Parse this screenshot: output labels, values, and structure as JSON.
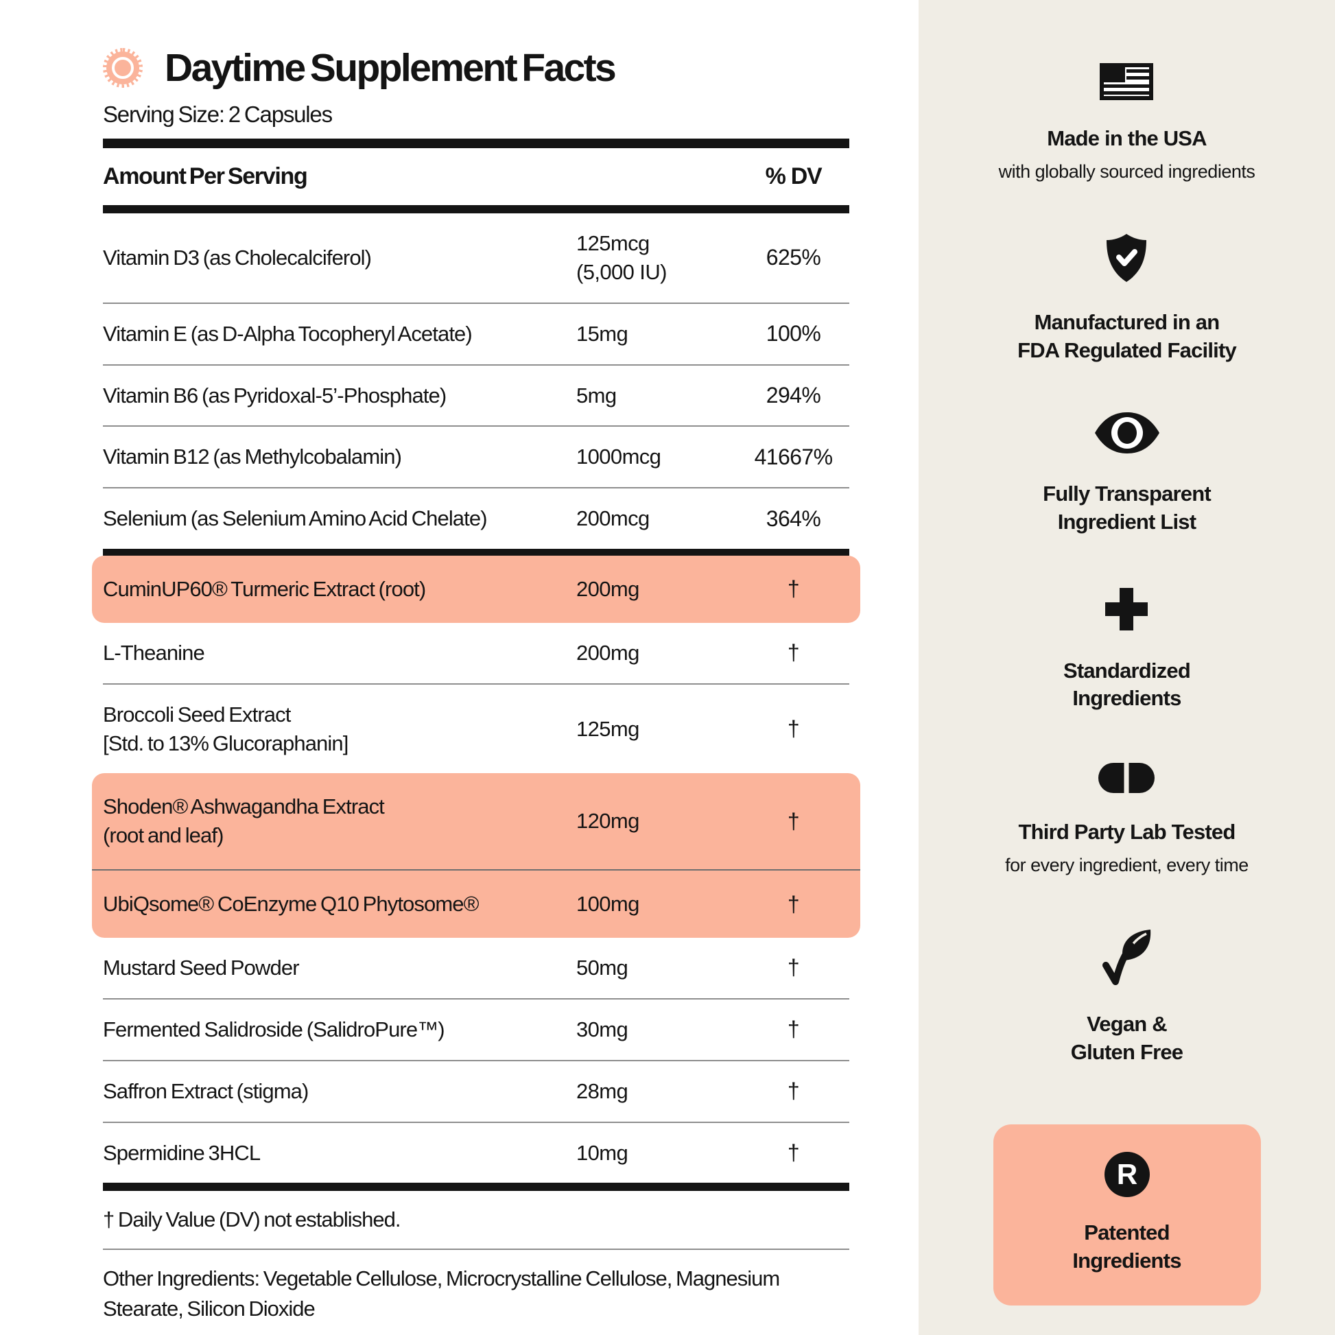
{
  "colors": {
    "accent_peach": "#FBB49B",
    "sidebar_background": "#F0EDE5",
    "ink": "#141414",
    "divider_gray": "#8E8E8E"
  },
  "header": {
    "title": "Daytime Supplement Facts",
    "serving_size": "Serving Size: 2 Capsules"
  },
  "table": {
    "amount_header": "Amount Per Serving",
    "dv_header": "% DV",
    "rows": [
      {
        "name": "Vitamin D3 (as Cholecalciferol)",
        "amount": "125mcg\n(5,000 IU)",
        "dv": "625%",
        "divider": false,
        "highlight": null
      },
      {
        "name": "Vitamin E (as D-Alpha Tocopheryl Acetate)",
        "amount": "15mg",
        "dv": "100%",
        "divider": true,
        "highlight": null
      },
      {
        "name": "Vitamin B6 (as Pyridoxal-5’-Phosphate)",
        "amount": "5mg",
        "dv": "294%",
        "divider": true,
        "highlight": null
      },
      {
        "name": "Vitamin B12 (as Methylcobalamin)",
        "amount": "1000mcg",
        "dv": "41667%",
        "divider": true,
        "highlight": null
      },
      {
        "name": "Selenium (as Selenium Amino Acid Chelate)",
        "amount": "200mcg",
        "dv": "364%",
        "divider": true,
        "highlight": null
      },
      {
        "name": "CuminUP60® Turmeric Extract (root)",
        "amount": "200mg",
        "dv": "†",
        "divider": false,
        "highlight": "all",
        "thick_rule_above": true
      },
      {
        "name": "L-Theanine",
        "amount": "200mg",
        "dv": "†",
        "divider": false,
        "highlight": null
      },
      {
        "name": "Broccoli Seed Extract\n[Std. to 13% Glucoraphanin]",
        "amount": "125mg",
        "dv": "†",
        "divider": true,
        "highlight": null
      },
      {
        "name": "Shoden® Ashwagandha Extract\n(root and leaf)",
        "amount": "120mg",
        "dv": "†",
        "divider": false,
        "highlight": "top"
      },
      {
        "name": "UbiQsome® CoEnzyme Q10 Phytosome®",
        "amount": "100mg",
        "dv": "†",
        "divider": true,
        "highlight": "bottom"
      },
      {
        "name": "Mustard Seed Powder",
        "amount": "50mg",
        "dv": "†",
        "divider": false,
        "highlight": null
      },
      {
        "name": "Fermented Salidroside (SalidroPure™)",
        "amount": "30mg",
        "dv": "†",
        "divider": true,
        "highlight": null
      },
      {
        "name": "Saffron Extract (stigma)",
        "amount": "28mg",
        "dv": "†",
        "divider": true,
        "highlight": null
      },
      {
        "name": "Spermidine 3HCL",
        "amount": "10mg",
        "dv": "†",
        "divider": true,
        "highlight": null
      }
    ],
    "footnote": "† Daily Value (DV) not established.",
    "other_ingredients": "Other Ingredients: Vegetable Cellulose, Microcrystalline Cellulose, Magnesium Stearate, Silicon Dioxide"
  },
  "sidebar": {
    "badges": [
      {
        "icon": "usa-flag-icon",
        "title": "Made in the USA",
        "subtitle": "with globally sourced ingredients"
      },
      {
        "icon": "shield-check-icon",
        "title": "Manufactured in an\nFDA Regulated Facility"
      },
      {
        "icon": "eye-icon",
        "title": "Fully Transparent\nIngredient List"
      },
      {
        "icon": "plus-icon",
        "title": "Standardized\nIngredients"
      },
      {
        "icon": "capsule-icon",
        "title": "Third Party Lab Tested",
        "subtitle": "for every ingredient, every time"
      },
      {
        "icon": "leaf-check-icon",
        "title": "Vegan &\nGluten Free"
      },
      {
        "icon": "registered-icon",
        "title": "Patented\nIngredients",
        "highlighted": true
      }
    ]
  }
}
